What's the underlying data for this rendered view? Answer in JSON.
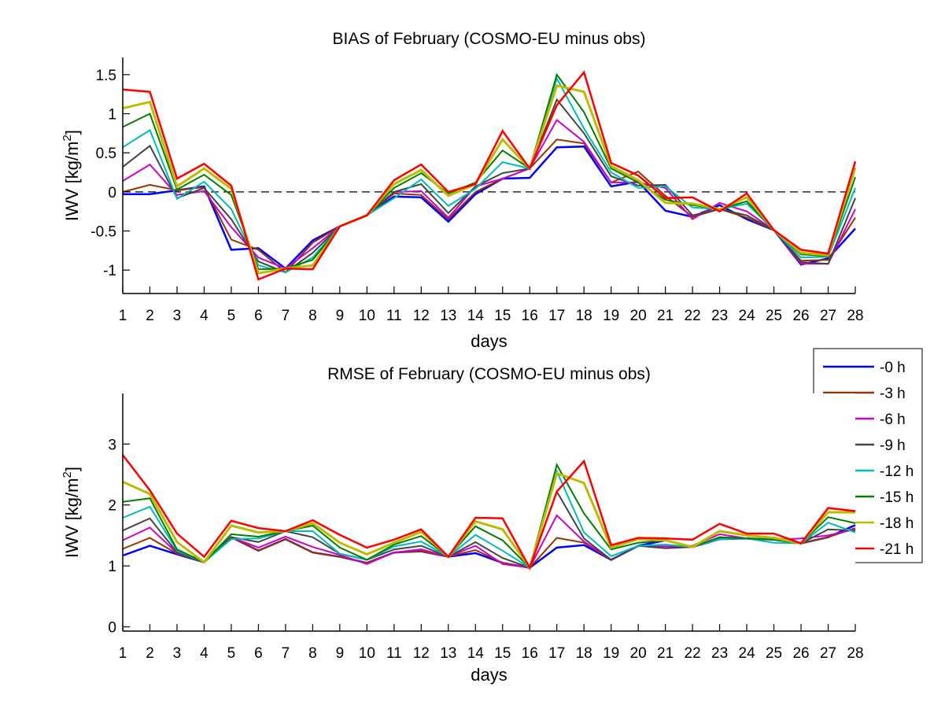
{
  "chart_data": [
    {
      "type": "line",
      "title": "BIAS of February (COSMO-EU minus obs)",
      "xlabel": "days",
      "ylabel": "IWV [kg/m²]",
      "ylabel_parts": {
        "base": "IWV [kg/m",
        "sup": "2",
        "end": "]"
      },
      "x": [
        1,
        2,
        3,
        4,
        5,
        6,
        7,
        8,
        9,
        10,
        11,
        12,
        13,
        14,
        15,
        16,
        17,
        18,
        19,
        20,
        21,
        22,
        23,
        24,
        25,
        26,
        27,
        28
      ],
      "xlim": [
        1,
        28
      ],
      "ylim": [
        -1.3,
        1.72
      ],
      "yticks": [
        -1,
        -0.5,
        0,
        0.5,
        1,
        1.5
      ],
      "ytick_labels": [
        "-1",
        "-0.5",
        "0",
        "0.5",
        "1",
        "1.5"
      ],
      "xtick_labels": [
        "1",
        "2",
        "3",
        "4",
        "5",
        "6",
        "7",
        "8",
        "9",
        "10",
        "11",
        "12",
        "13",
        "14",
        "15",
        "16",
        "17",
        "18",
        "19",
        "20",
        "21",
        "22",
        "23",
        "24",
        "25",
        "26",
        "27",
        "28"
      ],
      "reference_line": {
        "y": 0,
        "style": "dashed"
      },
      "grid": false,
      "series": [
        {
          "name": "-0 h",
          "color": "#0000ff",
          "values": [
            -0.03,
            -0.03,
            0.02,
            0.07,
            -0.74,
            -0.72,
            -0.98,
            -0.62,
            -0.44,
            -0.3,
            -0.06,
            -0.07,
            -0.38,
            -0.03,
            0.17,
            0.18,
            0.57,
            0.58,
            0.07,
            0.13,
            -0.24,
            -0.32,
            -0.17,
            -0.35,
            -0.49,
            -0.93,
            -0.85,
            -0.47
          ]
        },
        {
          "name": "-3 h",
          "color": "#993300",
          "values": [
            0.0,
            0.09,
            0.02,
            0.06,
            -0.61,
            -0.74,
            -1.03,
            -0.65,
            -0.44,
            -0.3,
            -0.02,
            -0.04,
            -0.35,
            0.0,
            0.17,
            0.3,
            0.67,
            0.62,
            0.12,
            0.26,
            -0.05,
            -0.32,
            -0.22,
            -0.33,
            -0.49,
            -0.88,
            -0.87,
            -0.33
          ]
        },
        {
          "name": "-6 h",
          "color": "#cc00cc",
          "values": [
            0.14,
            0.35,
            -0.04,
            0.01,
            -0.45,
            -0.84,
            -0.98,
            -0.72,
            -0.44,
            -0.3,
            0.0,
            0.01,
            -0.33,
            0.07,
            0.17,
            0.3,
            0.92,
            0.64,
            0.12,
            0.12,
            0.05,
            -0.35,
            -0.14,
            -0.25,
            -0.49,
            -0.92,
            -0.92,
            -0.22
          ]
        },
        {
          "name": "-9 h",
          "color": "#444444",
          "values": [
            0.32,
            0.59,
            -0.08,
            0.05,
            -0.35,
            -0.89,
            -1.03,
            -0.78,
            -0.44,
            -0.3,
            0.0,
            0.1,
            -0.27,
            0.07,
            0.24,
            0.3,
            1.18,
            0.75,
            0.2,
            0.08,
            0.09,
            -0.3,
            -0.22,
            -0.3,
            -0.49,
            -0.9,
            -0.92,
            -0.08
          ]
        },
        {
          "name": "-12 h",
          "color": "#00bbbb",
          "values": [
            0.57,
            0.79,
            -0.09,
            0.13,
            -0.22,
            -0.94,
            -1.03,
            -0.84,
            -0.44,
            -0.3,
            -0.08,
            0.16,
            -0.18,
            0.04,
            0.38,
            0.3,
            1.45,
            0.81,
            0.25,
            0.05,
            0.07,
            -0.2,
            -0.22,
            -0.15,
            -0.49,
            -0.84,
            -0.83,
            0.05
          ]
        },
        {
          "name": "-15 h",
          "color": "#007f00",
          "values": [
            0.83,
            1.0,
            0.03,
            0.22,
            -0.04,
            -0.99,
            -0.98,
            -0.87,
            -0.44,
            -0.3,
            0.05,
            0.24,
            -0.02,
            0.12,
            0.53,
            0.3,
            1.5,
            1.02,
            0.3,
            0.12,
            -0.1,
            -0.17,
            -0.22,
            -0.12,
            -0.49,
            -0.8,
            -0.82,
            0.19
          ]
        },
        {
          "name": "-18 h",
          "color": "#bbbb00",
          "values": [
            1.07,
            1.15,
            0.07,
            0.3,
            0.04,
            -1.04,
            -0.98,
            -0.94,
            -0.44,
            -0.3,
            0.1,
            0.28,
            -0.05,
            0.1,
            0.67,
            0.3,
            1.36,
            1.28,
            0.33,
            0.15,
            -0.14,
            -0.15,
            -0.22,
            -0.07,
            -0.49,
            -0.78,
            -0.81,
            0.31
          ]
        },
        {
          "name": "-21 h",
          "color": "#ff0000",
          "values": [
            1.31,
            1.28,
            0.17,
            0.36,
            0.08,
            -1.12,
            -0.98,
            -0.99,
            -0.44,
            -0.3,
            0.15,
            0.35,
            0.0,
            0.1,
            0.78,
            0.3,
            1.11,
            1.53,
            0.37,
            0.21,
            -0.08,
            -0.07,
            -0.25,
            -0.02,
            -0.49,
            -0.74,
            -0.79,
            0.39
          ]
        }
      ]
    },
    {
      "type": "line",
      "title": "RMSE of February (COSMO-EU minus obs)",
      "xlabel": "days",
      "ylabel": "IWV [kg/m²]",
      "ylabel_parts": {
        "base": "IWV [kg/m",
        "sup": "2",
        "end": "]"
      },
      "x": [
        1,
        2,
        3,
        4,
        5,
        6,
        7,
        8,
        9,
        10,
        11,
        12,
        13,
        14,
        15,
        16,
        17,
        18,
        19,
        20,
        21,
        22,
        23,
        24,
        25,
        26,
        27,
        28
      ],
      "xlim": [
        1,
        28
      ],
      "ylim": [
        -0.07,
        3.83
      ],
      "yticks": [
        0,
        1,
        2,
        3
      ],
      "ytick_labels": [
        "0",
        "1",
        "2",
        "3"
      ],
      "xtick_labels": [
        "1",
        "2",
        "3",
        "4",
        "5",
        "6",
        "7",
        "8",
        "9",
        "10",
        "11",
        "12",
        "13",
        "14",
        "15",
        "16",
        "17",
        "18",
        "19",
        "20",
        "21",
        "22",
        "23",
        "24",
        "25",
        "26",
        "27",
        "28"
      ],
      "grid": false,
      "legend": {
        "placement": "right",
        "entries": [
          "-0 h",
          "-3 h",
          "-6 h",
          "-9 h",
          "-12 h",
          "-15 h",
          "-18 h",
          "-21 h"
        ]
      },
      "series": [
        {
          "name": "-0 h",
          "color": "#0000ff",
          "values": [
            1.17,
            1.33,
            1.19,
            1.06,
            1.47,
            1.25,
            1.44,
            1.22,
            1.15,
            1.05,
            1.22,
            1.24,
            1.15,
            1.21,
            1.05,
            0.97,
            1.3,
            1.34,
            1.1,
            1.33,
            1.42,
            1.31,
            1.44,
            1.45,
            1.43,
            1.37,
            1.47,
            1.67
          ]
        },
        {
          "name": "-3 h",
          "color": "#993300",
          "values": [
            1.28,
            1.46,
            1.2,
            1.06,
            1.47,
            1.25,
            1.44,
            1.22,
            1.15,
            1.05,
            1.22,
            1.24,
            1.15,
            1.26,
            1.05,
            0.97,
            1.46,
            1.38,
            1.1,
            1.33,
            1.32,
            1.31,
            1.47,
            1.45,
            1.43,
            1.37,
            1.47,
            1.62
          ]
        },
        {
          "name": "-6 h",
          "color": "#cc00cc",
          "values": [
            1.42,
            1.63,
            1.21,
            1.06,
            1.47,
            1.3,
            1.48,
            1.31,
            1.18,
            1.03,
            1.22,
            1.27,
            1.15,
            1.33,
            1.03,
            0.97,
            1.83,
            1.4,
            1.1,
            1.33,
            1.32,
            1.33,
            1.52,
            1.45,
            1.43,
            1.45,
            1.5,
            1.6
          ]
        },
        {
          "name": "-9 h",
          "color": "#444444",
          "values": [
            1.58,
            1.78,
            1.22,
            1.06,
            1.47,
            1.39,
            1.57,
            1.47,
            1.2,
            1.1,
            1.27,
            1.33,
            1.15,
            1.39,
            1.13,
            0.97,
            2.22,
            1.45,
            1.1,
            1.33,
            1.29,
            1.31,
            1.47,
            1.45,
            1.43,
            1.37,
            1.6,
            1.58
          ]
        },
        {
          "name": "-12 h",
          "color": "#00bbbb",
          "values": [
            1.79,
            1.97,
            1.25,
            1.06,
            1.44,
            1.45,
            1.57,
            1.57,
            1.2,
            1.1,
            1.32,
            1.4,
            1.15,
            1.51,
            1.25,
            0.97,
            2.55,
            1.55,
            1.16,
            1.33,
            1.35,
            1.31,
            1.44,
            1.45,
            1.38,
            1.37,
            1.71,
            1.55
          ]
        },
        {
          "name": "-15 h",
          "color": "#007f00",
          "values": [
            2.05,
            2.11,
            1.27,
            1.06,
            1.52,
            1.48,
            1.57,
            1.66,
            1.3,
            1.1,
            1.35,
            1.49,
            1.15,
            1.65,
            1.42,
            0.97,
            2.66,
            1.86,
            1.27,
            1.38,
            1.42,
            1.31,
            1.47,
            1.45,
            1.43,
            1.37,
            1.8,
            1.7
          ]
        },
        {
          "name": "-18 h",
          "color": "#bbbb00",
          "values": [
            2.38,
            2.18,
            1.39,
            1.06,
            1.66,
            1.55,
            1.57,
            1.7,
            1.38,
            1.19,
            1.38,
            1.56,
            1.15,
            1.73,
            1.6,
            0.97,
            2.52,
            2.36,
            1.3,
            1.44,
            1.42,
            1.31,
            1.57,
            1.5,
            1.46,
            1.37,
            1.88,
            1.88
          ]
        },
        {
          "name": "-21 h",
          "color": "#ff0000",
          "values": [
            2.82,
            2.24,
            1.53,
            1.15,
            1.74,
            1.62,
            1.57,
            1.75,
            1.51,
            1.3,
            1.43,
            1.6,
            1.15,
            1.79,
            1.78,
            0.97,
            2.22,
            2.72,
            1.34,
            1.46,
            1.45,
            1.43,
            1.69,
            1.53,
            1.53,
            1.37,
            1.95,
            1.9
          ]
        }
      ]
    }
  ]
}
